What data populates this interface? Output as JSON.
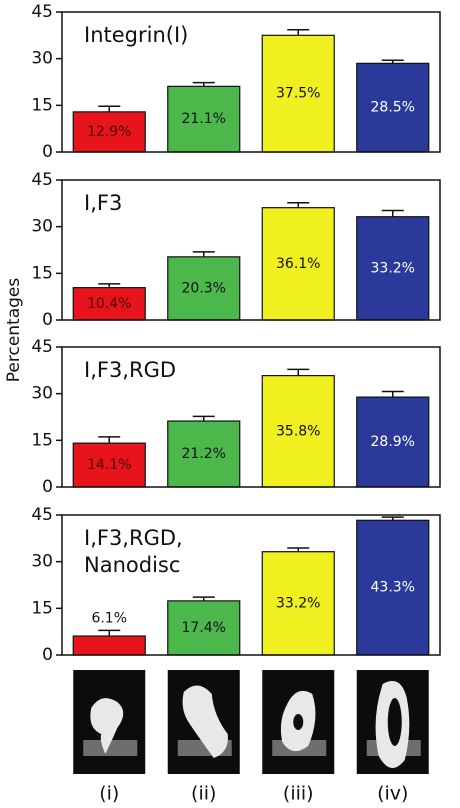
{
  "y_label": "Percentages",
  "categories": [
    "(i)",
    "(ii)",
    "(iii)",
    "(iv)"
  ],
  "chart_data": [
    {
      "type": "bar",
      "title": [
        "Integrin(I)"
      ],
      "values": [
        12.9,
        21.1,
        37.5,
        28.5
      ],
      "value_labels": [
        "12.9%",
        "21.1%",
        "37.5%",
        "28.5%"
      ],
      "errors": [
        1.8,
        1.2,
        1.8,
        1.0
      ],
      "colors": [
        "#e8141c",
        "#4cb84c",
        "#f0f020",
        "#2b3a9a"
      ],
      "ylim": [
        0,
        45
      ],
      "yticks": [
        0,
        15,
        30,
        45
      ]
    },
    {
      "type": "bar",
      "title": [
        "I,F3"
      ],
      "values": [
        10.4,
        20.3,
        36.1,
        33.2
      ],
      "value_labels": [
        "10.4%",
        "20.3%",
        "36.1%",
        "33.2%"
      ],
      "errors": [
        1.2,
        1.6,
        1.6,
        2.0
      ],
      "colors": [
        "#e8141c",
        "#4cb84c",
        "#f0f020",
        "#2b3a9a"
      ],
      "ylim": [
        0,
        45
      ],
      "yticks": [
        0,
        15,
        30,
        45
      ]
    },
    {
      "type": "bar",
      "title": [
        "I,F3,RGD"
      ],
      "values": [
        14.1,
        21.2,
        35.8,
        28.9
      ],
      "value_labels": [
        "14.1%",
        "21.2%",
        "35.8%",
        "28.9%"
      ],
      "errors": [
        2.0,
        1.5,
        2.0,
        1.8
      ],
      "colors": [
        "#e8141c",
        "#4cb84c",
        "#f0f020",
        "#2b3a9a"
      ],
      "ylim": [
        0,
        45
      ],
      "yticks": [
        0,
        15,
        30,
        45
      ]
    },
    {
      "type": "bar",
      "title": [
        "I,F3,RGD,",
        "Nanodisc"
      ],
      "values": [
        6.1,
        17.4,
        33.2,
        43.3
      ],
      "value_labels": [
        "6.1%",
        "17.4%",
        "33.2%",
        "43.3%"
      ],
      "errors": [
        1.8,
        1.2,
        1.2,
        1.0
      ],
      "colors": [
        "#e8141c",
        "#4cb84c",
        "#f0f020",
        "#2b3a9a"
      ],
      "ylim": [
        0,
        45
      ],
      "yticks": [
        0,
        15,
        30,
        45
      ]
    }
  ]
}
